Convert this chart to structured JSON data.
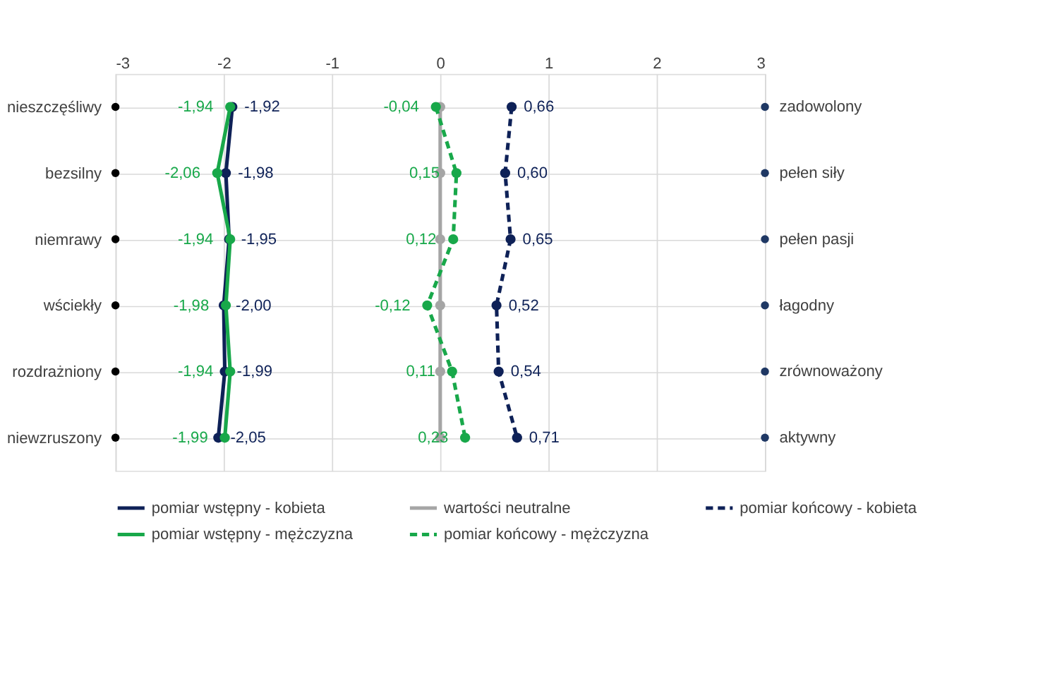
{
  "chart_data": {
    "type": "line",
    "orientation": "horizontal",
    "categories": [
      "nieszczęśliwy",
      "bezsilny",
      "niemrawy",
      "wściekły",
      "rozdrażniony",
      "niewzruszony"
    ],
    "y2_categories": [
      "zadowolony",
      "pełen siły",
      "pełen pasji",
      "łagodny",
      "zrównoważony",
      "aktywny"
    ],
    "xlim": [
      -3,
      3
    ],
    "xticks": [
      -3,
      -2,
      -1,
      0,
      1,
      2,
      3
    ],
    "grid": true,
    "legend": "bottom",
    "marker": "circle",
    "series": [
      {
        "name": "pomiar wstępny - kobieta",
        "color": "#0e2157",
        "line_style": "solid",
        "values": [
          -1.92,
          -1.98,
          -1.95,
          -2.0,
          -1.99,
          -2.05
        ],
        "value_labels": [
          "-1,92",
          "-1,98",
          "-1,95",
          "-2,00",
          "-1,99",
          "-2,05"
        ]
      },
      {
        "name": "wartości neutralne",
        "color": "#a5a5a5",
        "line_style": "solid",
        "values": [
          0,
          0,
          0,
          0,
          0,
          0
        ]
      },
      {
        "name": "pomiar końcowy - kobieta",
        "color": "#0e2157",
        "line_style": "dashed",
        "values": [
          0.66,
          0.6,
          0.65,
          0.52,
          0.54,
          0.71
        ],
        "value_labels": [
          "0,66",
          "0,60",
          "0,65",
          "0,52",
          "0,54",
          "0,71"
        ]
      },
      {
        "name": "pomiar wstępny - mężczyzna",
        "color": "#18a84a",
        "line_style": "solid",
        "values": [
          -1.94,
          -2.06,
          -1.94,
          -1.98,
          -1.94,
          -1.99
        ],
        "value_labels": [
          "-1,94",
          "-2,06",
          "-1,94",
          "-1,98",
          "-1,94",
          "-1,99"
        ]
      },
      {
        "name": "pomiar końcowy - mężczyzna",
        "color": "#18a84a",
        "line_style": "dashed",
        "values": [
          -0.04,
          0.15,
          0.12,
          -0.12,
          0.11,
          0.23
        ],
        "value_labels": [
          "-0,04",
          "0,15",
          "0,12",
          "-0,12",
          "0,11",
          "0,23"
        ]
      },
      {
        "type": "scatter",
        "color": "#000000",
        "values": [
          -3,
          -3,
          -3,
          -3,
          -3,
          -3
        ]
      },
      {
        "type": "scatter",
        "color": "#1f3864",
        "values": [
          3,
          3,
          3,
          3,
          3,
          3
        ]
      }
    ]
  }
}
